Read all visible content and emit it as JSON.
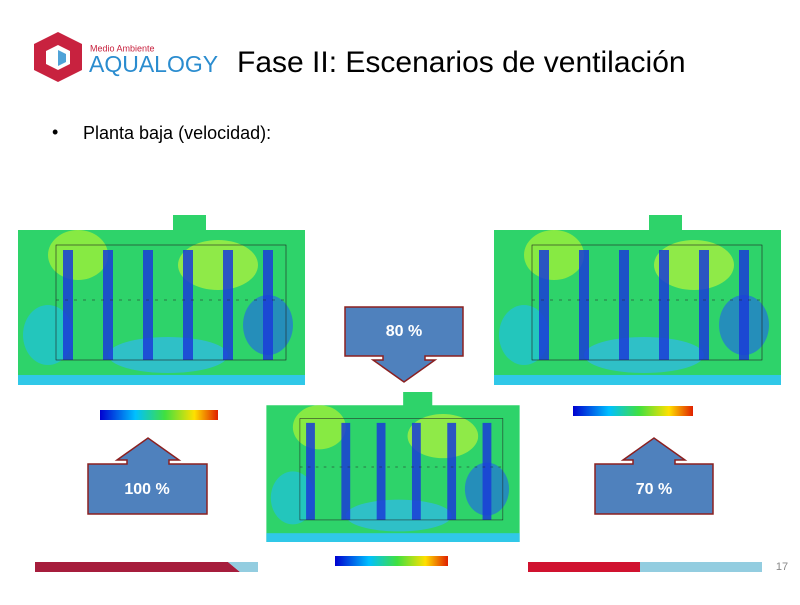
{
  "header": {
    "logo_top": "Medio Ambiente",
    "logo_main": "AQUALOGY",
    "title": "Fase II: Escenarios de ventilación"
  },
  "bullets": [
    "Planta baja (velocidad):"
  ],
  "callouts": [
    "80 %",
    "100 %",
    "70 %"
  ],
  "footer": {
    "page_number": "17"
  }
}
